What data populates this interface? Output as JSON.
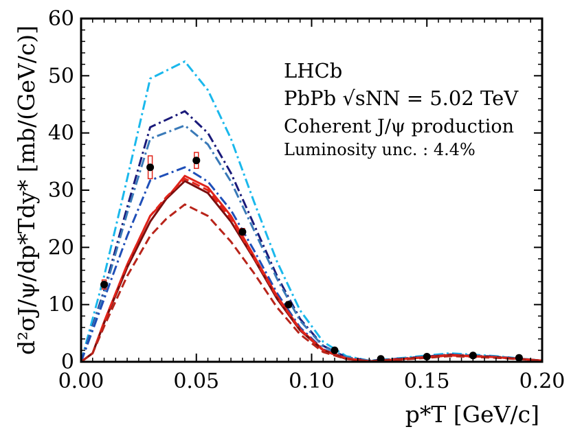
{
  "chart_data": {
    "type": "line",
    "xlabel": "p*T [GeV/c]",
    "ylabel": "d²σJ/ψ/dp*Tdy* [mb/(GeV/c)]",
    "xlim": [
      0.0,
      0.2
    ],
    "ylim": [
      0,
      60
    ],
    "xticks": [
      "0.00",
      "0.05",
      "0.10",
      "0.15",
      "0.20"
    ],
    "yticks": [
      "0",
      "10",
      "20",
      "30",
      "40",
      "50",
      "60"
    ],
    "x_tick_values": [
      0.0,
      0.05,
      0.1,
      0.15,
      0.2
    ],
    "y_tick_values": [
      0,
      10,
      20,
      30,
      40,
      50,
      60
    ],
    "grid": false,
    "annotations": {
      "experiment": "LHCb",
      "system": "PbPb √sNN = 5.02 TeV",
      "process": "Coherent J/ψ production",
      "lumi": "Luminosity unc. : 4.4%"
    },
    "data_points": {
      "x": [
        0.01,
        0.03,
        0.05,
        0.07,
        0.09,
        0.11,
        0.13,
        0.15,
        0.17,
        0.19
      ],
      "y": [
        13.5,
        34.0,
        35.2,
        22.7,
        10.0,
        2.0,
        0.5,
        0.9,
        1.1,
        0.7
      ],
      "syst": [
        0.8,
        2.0,
        1.4,
        0.6,
        0.5,
        0.2,
        0.1,
        0.1,
        0.1,
        0.1
      ]
    },
    "series": [
      {
        "style": "dashdot",
        "color": "#1ab8ec",
        "x": [
          0.0,
          0.01,
          0.02,
          0.03,
          0.045,
          0.055,
          0.065,
          0.075,
          0.085,
          0.095,
          0.105,
          0.115,
          0.125,
          0.14,
          0.16,
          0.18,
          0.2
        ],
        "values": [
          0.0,
          15.0,
          32.0,
          49.5,
          52.5,
          47.5,
          39.0,
          28.0,
          17.5,
          9.0,
          3.5,
          1.0,
          0.2,
          0.7,
          1.5,
          1.0,
          0.2
        ]
      },
      {
        "style": "dashdot",
        "color": "#1a1a7a",
        "x": [
          0.0,
          0.01,
          0.02,
          0.03,
          0.045,
          0.055,
          0.065,
          0.075,
          0.085,
          0.095,
          0.105,
          0.115,
          0.125,
          0.14,
          0.16,
          0.18,
          0.2
        ],
        "values": [
          0.0,
          12.5,
          27.0,
          41.0,
          43.8,
          40.0,
          33.0,
          24.0,
          15.0,
          7.5,
          2.8,
          0.8,
          0.2,
          0.6,
          1.3,
          0.9,
          0.2
        ]
      },
      {
        "style": "dashdot",
        "color": "#3a7ab8",
        "x": [
          0.0,
          0.01,
          0.02,
          0.03,
          0.045,
          0.055,
          0.065,
          0.075,
          0.085,
          0.095,
          0.105,
          0.115,
          0.125,
          0.14,
          0.16,
          0.18,
          0.2
        ],
        "values": [
          0.0,
          12.0,
          26.0,
          39.0,
          41.3,
          38.0,
          31.5,
          23.0,
          14.5,
          7.2,
          2.7,
          0.8,
          0.2,
          0.6,
          1.3,
          0.9,
          0.2
        ]
      },
      {
        "style": "dashdot",
        "color": "#1f4fb8",
        "x": [
          0.0,
          0.01,
          0.02,
          0.03,
          0.045,
          0.055,
          0.065,
          0.075,
          0.085,
          0.095,
          0.105,
          0.115,
          0.125,
          0.14,
          0.16,
          0.18,
          0.2
        ],
        "values": [
          0.0,
          11.0,
          22.0,
          31.7,
          34.0,
          31.5,
          26.5,
          19.5,
          12.0,
          6.0,
          2.2,
          0.6,
          0.1,
          0.5,
          1.2,
          0.8,
          0.2
        ]
      },
      {
        "style": "solid",
        "color": "#e0241a",
        "x": [
          0.0,
          0.005,
          0.01,
          0.02,
          0.03,
          0.037,
          0.045,
          0.055,
          0.065,
          0.075,
          0.085,
          0.095,
          0.105,
          0.115,
          0.125,
          0.14,
          0.16,
          0.18,
          0.2
        ],
        "values": [
          0.0,
          1.5,
          7.0,
          17.0,
          25.5,
          28.5,
          32.5,
          30.5,
          25.5,
          18.5,
          11.5,
          5.7,
          2.1,
          0.6,
          0.1,
          0.5,
          1.2,
          0.8,
          0.2
        ]
      },
      {
        "style": "solid",
        "color": "#7a0f0f",
        "x": [
          0.0,
          0.005,
          0.01,
          0.02,
          0.03,
          0.037,
          0.045,
          0.055,
          0.065,
          0.075,
          0.085,
          0.095,
          0.105,
          0.115,
          0.125,
          0.14,
          0.16,
          0.18,
          0.2
        ],
        "values": [
          0.0,
          1.5,
          6.8,
          16.5,
          24.5,
          28.5,
          31.6,
          29.5,
          24.5,
          18.0,
          11.0,
          5.5,
          2.0,
          0.5,
          0.1,
          0.5,
          1.1,
          0.8,
          0.2
        ]
      },
      {
        "style": "dashed",
        "color": "#e0241a",
        "x": [
          0.0,
          0.005,
          0.01,
          0.02,
          0.03,
          0.037,
          0.045,
          0.055,
          0.065,
          0.075,
          0.085,
          0.095,
          0.105,
          0.115,
          0.125,
          0.14,
          0.16,
          0.18,
          0.2
        ],
        "values": [
          0.0,
          1.5,
          7.0,
          17.0,
          25.5,
          28.8,
          32.0,
          30.0,
          25.0,
          18.2,
          11.3,
          5.6,
          2.0,
          0.6,
          0.1,
          0.5,
          1.1,
          0.8,
          0.2
        ]
      },
      {
        "style": "dashed",
        "color": "#b8241a",
        "x": [
          0.0,
          0.005,
          0.01,
          0.02,
          0.03,
          0.037,
          0.045,
          0.055,
          0.065,
          0.075,
          0.085,
          0.095,
          0.105,
          0.115,
          0.125,
          0.14,
          0.16,
          0.18,
          0.2
        ],
        "values": [
          0.0,
          1.5,
          6.2,
          15.0,
          22.0,
          25.0,
          27.5,
          25.5,
          21.0,
          15.5,
          9.5,
          4.8,
          1.7,
          0.5,
          0.1,
          0.4,
          1.0,
          0.7,
          0.2
        ]
      }
    ]
  }
}
